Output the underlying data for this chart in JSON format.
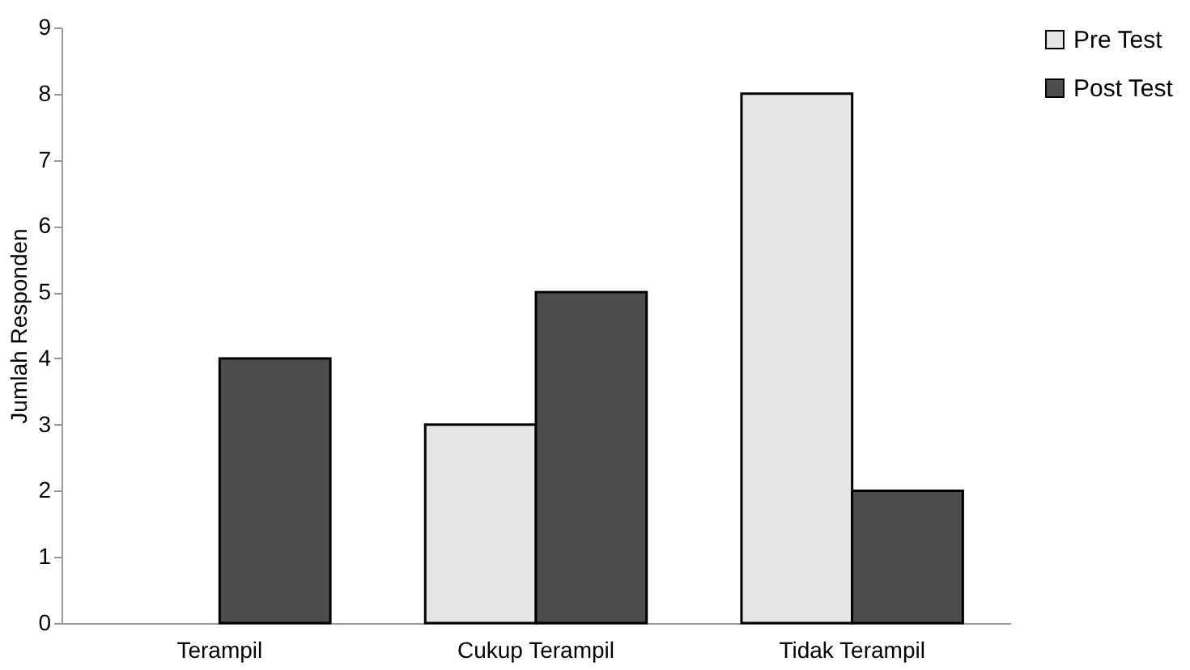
{
  "chart_data": {
    "type": "bar",
    "ylabel": "Jumlah Responden",
    "categories": [
      "Terampil",
      "Cukup Terampil",
      "Tidak Terampil"
    ],
    "series": [
      {
        "name": "Pre Test",
        "color": "#e6e6e6",
        "values": [
          0,
          3,
          8
        ]
      },
      {
        "name": "Post Test",
        "color": "#4d4d4d",
        "values": [
          4,
          5,
          2
        ]
      }
    ],
    "ylim": [
      0,
      9
    ],
    "yticks": [
      0,
      1,
      2,
      3,
      4,
      5,
      6,
      7,
      8,
      9
    ],
    "grid": false,
    "legend": "right"
  }
}
